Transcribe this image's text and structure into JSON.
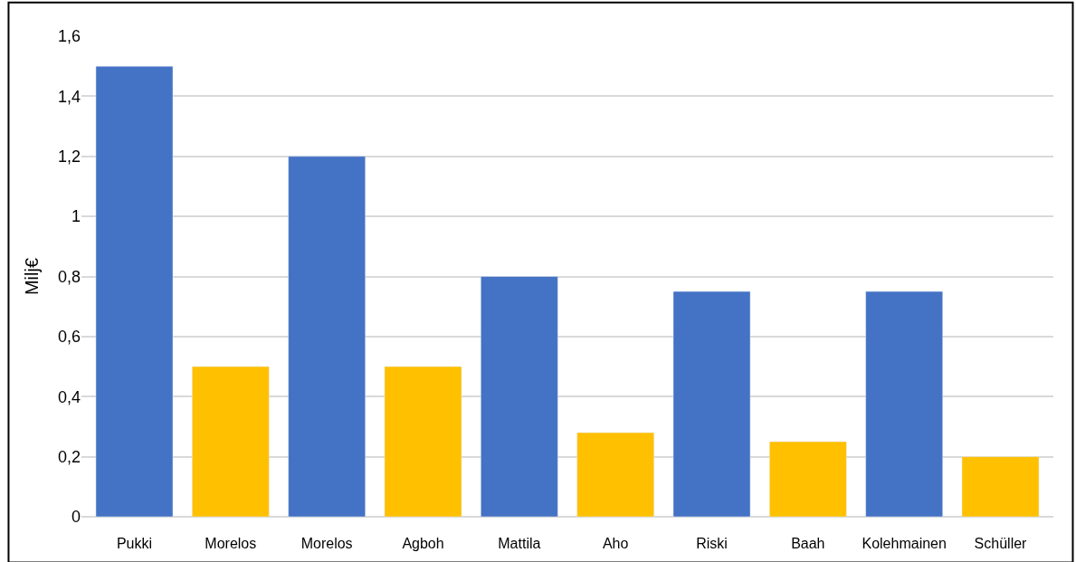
{
  "chart_data": {
    "type": "bar",
    "ylabel": "Milj€",
    "categories": [
      "Pukki",
      "Morelos",
      "Morelos",
      "Agboh",
      "Mattila",
      "Aho",
      "Riski",
      "Baah",
      "Kolehmainen",
      "Schüller"
    ],
    "values": [
      1.5,
      0.5,
      1.2,
      0.5,
      0.8,
      0.28,
      0.75,
      0.25,
      0.75,
      0.2
    ],
    "colors": [
      "#4472c4",
      "#ffc000",
      "#4472c4",
      "#ffc000",
      "#4472c4",
      "#ffc000",
      "#4472c4",
      "#ffc000",
      "#4472c4",
      "#ffc000"
    ],
    "ylim": [
      0,
      1.6
    ],
    "yticks": [
      {
        "value": 0,
        "label": "0"
      },
      {
        "value": 0.2,
        "label": "0,2"
      },
      {
        "value": 0.4,
        "label": "0,4"
      },
      {
        "value": 0.6,
        "label": "0,6"
      },
      {
        "value": 0.8,
        "label": "0,8"
      },
      {
        "value": 1,
        "label": "1"
      },
      {
        "value": 1.2,
        "label": "1,2"
      },
      {
        "value": 1.4,
        "label": "1,4"
      },
      {
        "value": 1.6,
        "label": "1,6"
      }
    ],
    "grid": "y"
  }
}
